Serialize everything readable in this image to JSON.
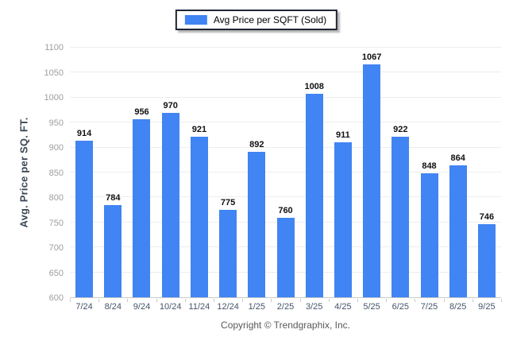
{
  "legend": {
    "label": "Avg Price per SQFT (Sold)",
    "swatch_color": "#4184F3"
  },
  "chart_data": {
    "type": "bar",
    "title": "",
    "series_name": "Avg Price per SQFT (Sold)",
    "categories": [
      "7/24",
      "8/24",
      "9/24",
      "10/24",
      "11/24",
      "12/24",
      "1/25",
      "2/25",
      "3/25",
      "4/25",
      "5/25",
      "6/25",
      "7/25",
      "8/25",
      "9/25"
    ],
    "values": [
      914,
      784,
      956,
      970,
      921,
      775,
      892,
      760,
      1008,
      911,
      1067,
      922,
      848,
      864,
      746
    ],
    "xlabel": "",
    "ylabel": "Avg. Price per SQ. FT.",
    "ylim": [
      600,
      1100
    ],
    "ytick_step": 50,
    "grid": true,
    "legend_position": "top-center",
    "bar_color": "#4184F3"
  },
  "footer": {
    "text": "Copyright © Trendgraphix, Inc."
  },
  "colors": {
    "bar": "#4184F3",
    "gridline": "#EDEDED",
    "axis_line": "#C9C9C9",
    "y_tick_label": "#9E9E9E",
    "x_tick_label": "#44546A",
    "value_label": "#111111",
    "y_axis_title": "#3B4754",
    "footer_text": "#595959",
    "legend_border": "#1F2533",
    "background": "#FFFFFF"
  }
}
